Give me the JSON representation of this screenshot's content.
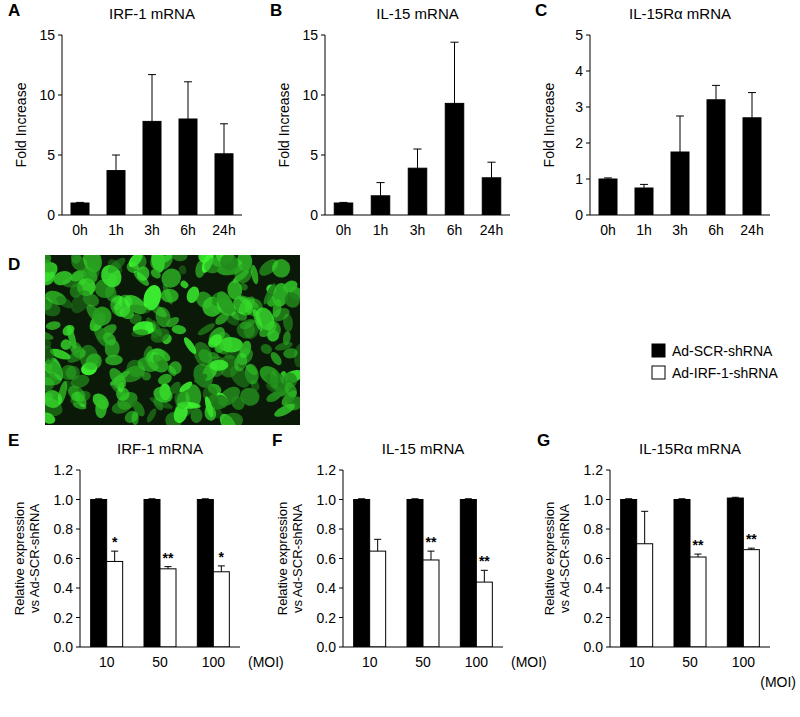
{
  "chart_data": [
    {
      "type": "bar",
      "panel": "A",
      "title": "IRF-1 mRNA",
      "ylabel": "Fold Increase",
      "categories": [
        "0h",
        "1h",
        "3h",
        "6h",
        "24h"
      ],
      "values": [
        1.0,
        3.7,
        7.8,
        8.0,
        5.1
      ],
      "errors": [
        0.05,
        1.3,
        3.9,
        3.1,
        2.5
      ],
      "color": "#000000",
      "ylim": [
        0,
        15
      ],
      "yticks": [
        0,
        5,
        10,
        15
      ]
    },
    {
      "type": "bar",
      "panel": "B",
      "title": "IL-15 mRNA",
      "ylabel": "Fold Increase",
      "categories": [
        "0h",
        "1h",
        "3h",
        "6h",
        "24h"
      ],
      "values": [
        1.0,
        1.6,
        3.9,
        9.3,
        3.1
      ],
      "errors": [
        0.05,
        1.1,
        1.6,
        5.1,
        1.3
      ],
      "color": "#000000",
      "ylim": [
        0,
        15
      ],
      "yticks": [
        0,
        5,
        10,
        15
      ]
    },
    {
      "type": "bar",
      "panel": "C",
      "title": "IL-15Rα mRNA",
      "ylabel": "Fold Increase",
      "categories": [
        "0h",
        "1h",
        "3h",
        "6h",
        "24h"
      ],
      "values": [
        1.0,
        0.75,
        1.75,
        3.2,
        2.7
      ],
      "errors": [
        0.03,
        0.1,
        1.0,
        0.4,
        0.7
      ],
      "color": "#000000",
      "ylim": [
        0,
        5
      ],
      "yticks": [
        0,
        1,
        2,
        3,
        4,
        5
      ]
    },
    {
      "type": "image",
      "panel": "D"
    },
    {
      "type": "bar",
      "panel": "E",
      "title": "IRF-1 mRNA",
      "ylabel": [
        "Relative expression",
        "vs Ad-SCR-shRNA"
      ],
      "xlabel": "(MOI)",
      "categories": [
        "10",
        "50",
        "100"
      ],
      "series": [
        {
          "name": "Ad-SCR-shRNA",
          "color": "#000000",
          "values": [
            1.0,
            1.0,
            1.0
          ],
          "errors": [
            0.005,
            0.005,
            0.005
          ]
        },
        {
          "name": "Ad-IRF-1-shRNA",
          "color": "#ffffff",
          "values": [
            0.58,
            0.53,
            0.51
          ],
          "errors": [
            0.07,
            0.015,
            0.04
          ],
          "significance": [
            "*",
            "**",
            "*"
          ]
        }
      ],
      "ylim": [
        0,
        1.2
      ],
      "yticks": [
        {
          "value": 0,
          "label": "0.0"
        },
        0.2,
        0.4,
        0.6,
        0.8,
        {
          "value": 1,
          "label": "1.0"
        },
        1.2
      ]
    },
    {
      "type": "bar",
      "panel": "F",
      "title": "IL-15 mRNA",
      "ylabel": [
        "Relative expression",
        "vs Ad-SCR-shRNA"
      ],
      "xlabel": "(MOI)",
      "categories": [
        "10",
        "50",
        "100"
      ],
      "series": [
        {
          "name": "Ad-SCR-shRNA",
          "color": "#000000",
          "values": [
            1.0,
            1.0,
            1.0
          ],
          "errors": [
            0.005,
            0.005,
            0.005
          ]
        },
        {
          "name": "Ad-IRF-1-shRNA",
          "color": "#ffffff",
          "values": [
            0.65,
            0.59,
            0.44
          ],
          "errors": [
            0.08,
            0.06,
            0.08
          ],
          "significance": [
            null,
            "**",
            "**"
          ]
        }
      ],
      "ylim": [
        0,
        1.2
      ],
      "yticks": [
        {
          "value": 0,
          "label": "0.0"
        },
        0.2,
        0.4,
        0.6,
        0.8,
        {
          "value": 1,
          "label": "1.0"
        },
        1.2
      ]
    },
    {
      "type": "bar",
      "panel": "G",
      "title": "IL-15Rα mRNA",
      "ylabel": [
        "Relative expression",
        "vs Ad-SCR-shRNA"
      ],
      "xlabel": "(MOI)",
      "categories": [
        "10",
        "50",
        "100"
      ],
      "legend": "top",
      "series": [
        {
          "name": "Ad-SCR-shRNA",
          "color": "#000000",
          "values": [
            1.0,
            1.0,
            1.01
          ],
          "errors": [
            0.005,
            0.005,
            0.005
          ]
        },
        {
          "name": "Ad-IRF-1-shRNA",
          "color": "#ffffff",
          "values": [
            0.7,
            0.61,
            0.66
          ],
          "errors": [
            0.22,
            0.02,
            0.01
          ],
          "significance": [
            null,
            "**",
            "**"
          ]
        }
      ],
      "ylim": [
        0,
        1.2
      ],
      "yticks": [
        {
          "value": 0,
          "label": "0.0"
        },
        0.2,
        0.4,
        0.6,
        0.8,
        {
          "value": 1,
          "label": "1.0"
        },
        1.2
      ]
    }
  ]
}
